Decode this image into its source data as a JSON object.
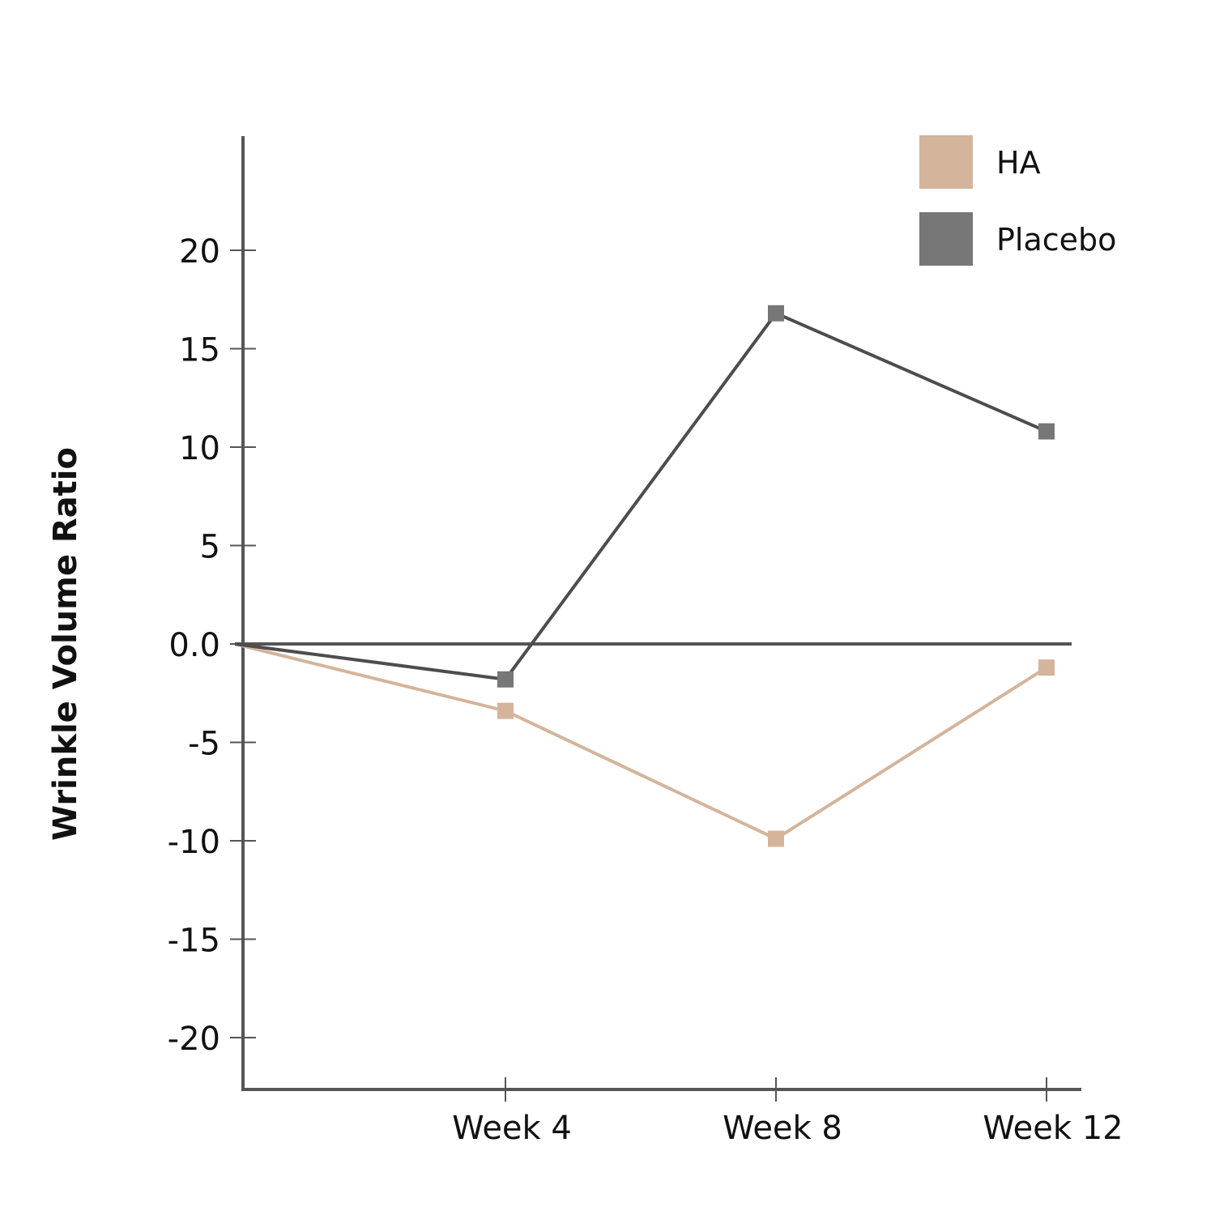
{
  "chart_data": {
    "type": "line",
    "title": "",
    "xlabel": "",
    "ylabel": "Wrinkle Volume Ratio",
    "categories": [
      "Week 4",
      "Week 8",
      "Week 12"
    ],
    "y_ticks": [
      "20",
      "15",
      "10",
      "5",
      "0.0",
      "-5",
      "-10",
      "-15",
      "-20"
    ],
    "ylim": [
      -22,
      25
    ],
    "grid": false,
    "legend_position": "top-right",
    "series": [
      {
        "name": "HA",
        "color": "#d4b49a",
        "x": [
          0,
          4,
          8,
          12
        ],
        "y": [
          0,
          -3.4,
          -9.9,
          -1.2
        ]
      },
      {
        "name": "Placebo",
        "color": "#777777",
        "line_color": "#4d4d4d",
        "x": [
          0,
          4,
          8,
          12
        ],
        "y": [
          0,
          -1.8,
          16.8,
          10.8
        ]
      }
    ]
  }
}
